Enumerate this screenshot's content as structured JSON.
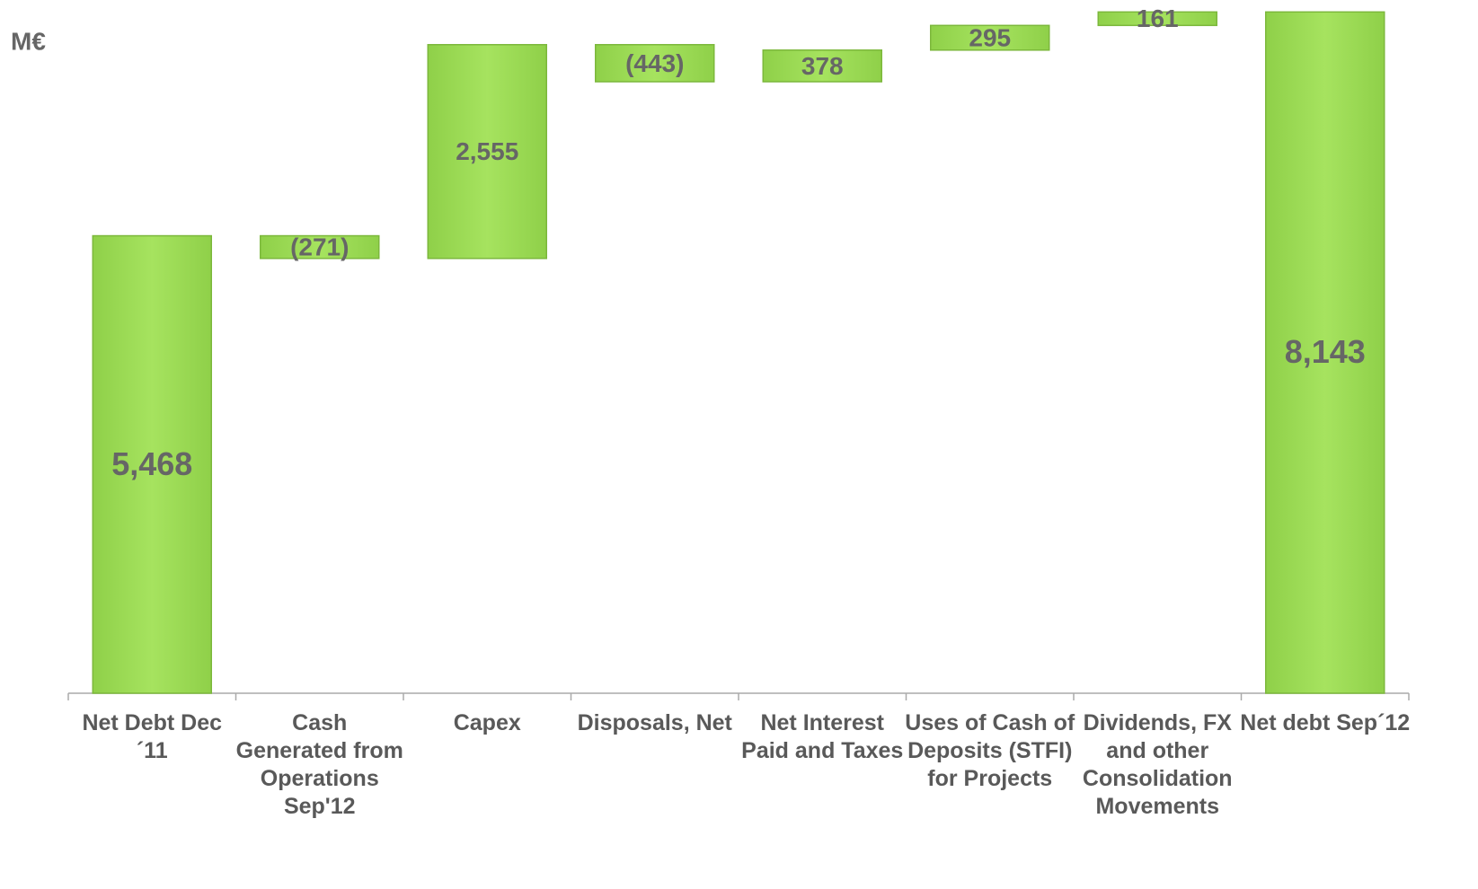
{
  "chart_data": {
    "type": "waterfall",
    "y_label": "M€",
    "categories": [
      "Net Debt Dec´11",
      "Cash Generated from Operations Sep'12",
      "Capex",
      "Disposals, Net",
      "Net Interest Paid and Taxes",
      "Uses of Cash of Deposits (STFI) for Projects",
      "Dividends, FX and other Consolidation Movements",
      "Net debt Sep´12"
    ],
    "values": [
      5468,
      -271,
      2555,
      -443,
      378,
      295,
      161,
      8143
    ],
    "value_labels": [
      "5,468",
      "(271)",
      "2,555",
      "(443)",
      "378",
      "295",
      "161",
      "8,143"
    ],
    "color": "#9edd58",
    "ylim": [
      0,
      8200
    ]
  }
}
